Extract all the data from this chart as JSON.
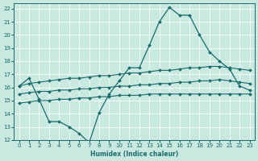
{
  "xlabel": "Humidex (Indice chaleur)",
  "xlim": [
    -0.5,
    23.5
  ],
  "ylim": [
    12,
    22.4
  ],
  "yticks": [
    12,
    13,
    14,
    15,
    16,
    17,
    18,
    19,
    20,
    21,
    22
  ],
  "xticks": [
    0,
    1,
    2,
    3,
    4,
    5,
    6,
    7,
    8,
    9,
    10,
    11,
    12,
    13,
    14,
    15,
    16,
    17,
    18,
    19,
    20,
    21,
    22,
    23
  ],
  "bg_color": "#c8e8e0",
  "line_color": "#1a6b6b",
  "curve_main": {
    "x": [
      0,
      1,
      2,
      3,
      4,
      5,
      6,
      7,
      8,
      9,
      10,
      11,
      12,
      13,
      14,
      15,
      16,
      17,
      18,
      19,
      20,
      21,
      22,
      23
    ],
    "y": [
      16.1,
      16.7,
      15.1,
      13.4,
      13.4,
      13.0,
      12.5,
      11.8,
      14.1,
      15.5,
      16.5,
      17.5,
      17.5,
      19.2,
      21.0,
      22.1,
      21.5,
      21.5,
      20.0,
      18.7,
      18.0,
      17.4,
      16.1,
      15.8
    ]
  },
  "curve_upper": {
    "x": [
      0,
      1,
      2,
      3,
      4,
      5,
      6,
      7,
      8,
      9,
      10,
      11,
      12,
      13,
      14,
      15,
      16,
      17,
      18,
      19,
      20,
      21,
      22,
      23
    ],
    "y": [
      16.1,
      16.3,
      16.4,
      16.5,
      16.6,
      16.7,
      16.7,
      16.8,
      16.9,
      16.9,
      17.0,
      17.1,
      17.1,
      17.2,
      17.3,
      17.3,
      17.4,
      17.5,
      17.5,
      17.6,
      17.6,
      17.5,
      17.4,
      17.3
    ]
  },
  "curve_mid": {
    "x": [
      0,
      1,
      2,
      3,
      4,
      5,
      6,
      7,
      8,
      9,
      10,
      11,
      12,
      13,
      14,
      15,
      16,
      17,
      18,
      19,
      20,
      21,
      22,
      23
    ],
    "y": [
      15.5,
      15.6,
      15.7,
      15.7,
      15.8,
      15.8,
      15.9,
      15.9,
      16.0,
      16.0,
      16.1,
      16.1,
      16.2,
      16.2,
      16.3,
      16.3,
      16.4,
      16.4,
      16.5,
      16.5,
      16.6,
      16.5,
      16.4,
      16.3
    ]
  },
  "curve_low": {
    "x": [
      0,
      1,
      2,
      3,
      4,
      5,
      6,
      7,
      8,
      9,
      10,
      11,
      12,
      13,
      14,
      15,
      16,
      17,
      18,
      19,
      20,
      21,
      22,
      23
    ],
    "y": [
      14.8,
      14.9,
      15.0,
      15.0,
      15.1,
      15.1,
      15.2,
      15.2,
      15.3,
      15.3,
      15.4,
      15.4,
      15.4,
      15.5,
      15.5,
      15.5,
      15.5,
      15.5,
      15.5,
      15.5,
      15.5,
      15.5,
      15.5,
      15.5
    ]
  }
}
